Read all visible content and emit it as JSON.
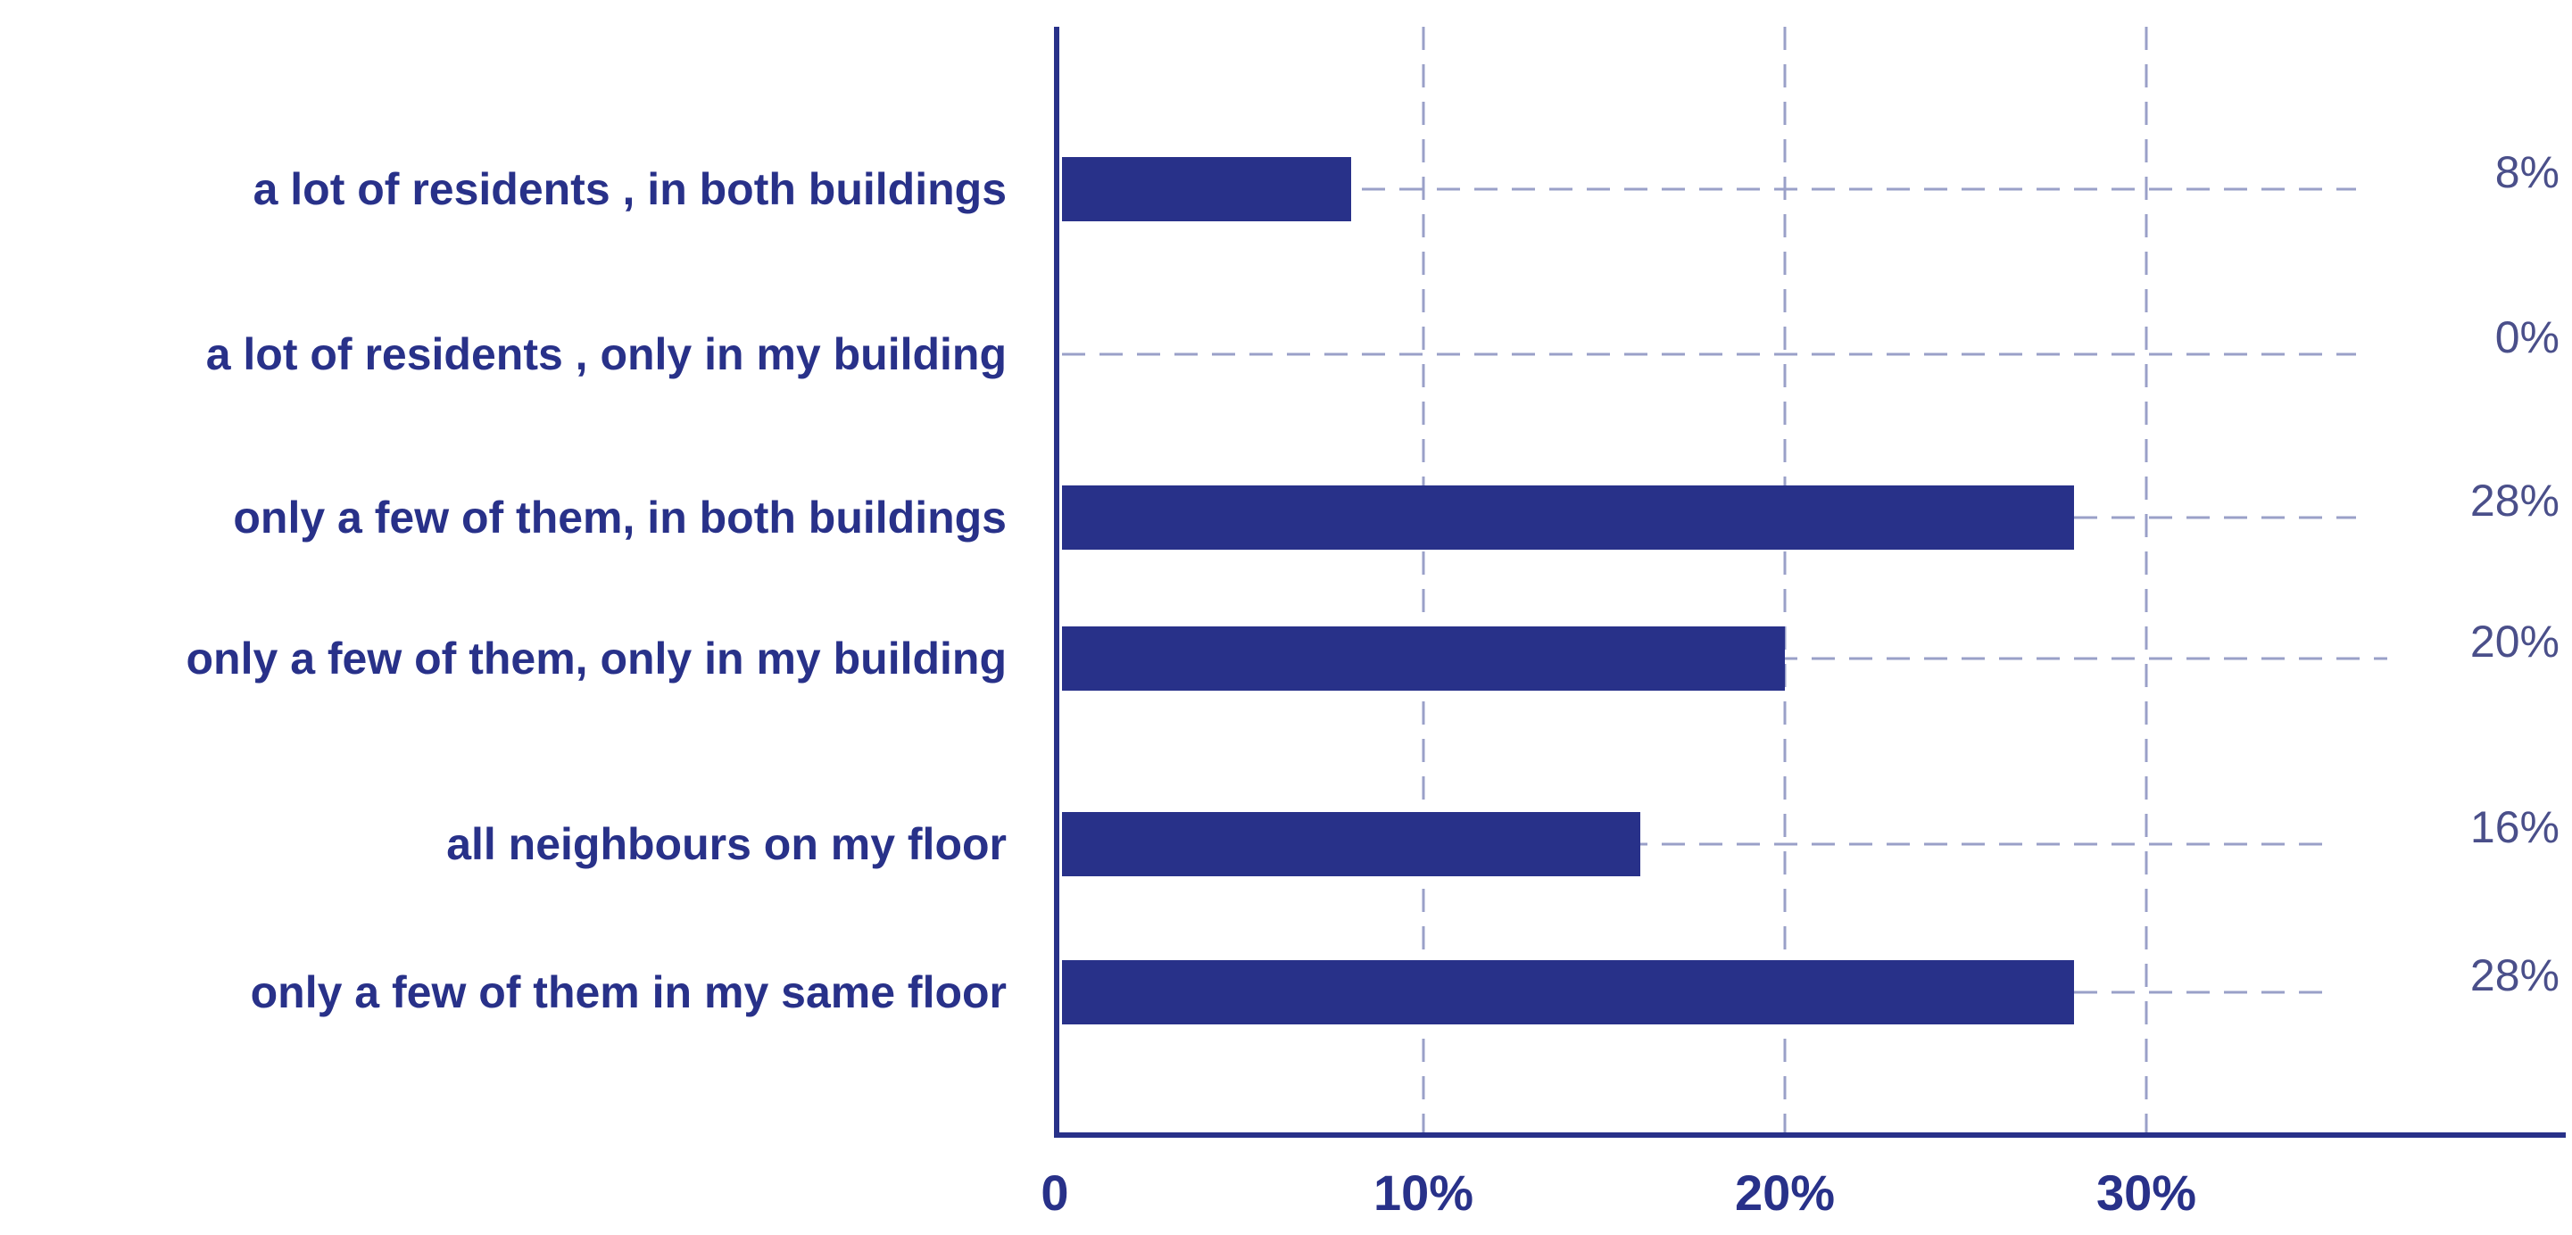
{
  "chart_data": {
    "type": "bar",
    "orientation": "horizontal",
    "categories": [
      "a lot of residents , in both buildings",
      "a lot of residents , only in my building",
      "only a few of them, in both buildings",
      "only a few of them, only in my building",
      "all neighbours on my floor",
      "only a few of them in my same floor"
    ],
    "values": [
      8,
      0,
      28,
      20,
      16,
      28
    ],
    "value_labels": [
      "8%",
      "0%",
      "28%",
      "20%",
      "16%",
      "28%"
    ],
    "x_ticks": [
      0,
      10,
      20,
      30
    ],
    "x_tick_labels": [
      "0",
      "10%",
      "20%",
      "30%"
    ],
    "xlim": [
      0,
      40
    ],
    "grid": "vertical dashed",
    "colors": {
      "bar": "#283189",
      "text": "#283189",
      "grid": "#9aa0c8",
      "axis": "#283189",
      "value_text": "#4a4f8a"
    }
  }
}
